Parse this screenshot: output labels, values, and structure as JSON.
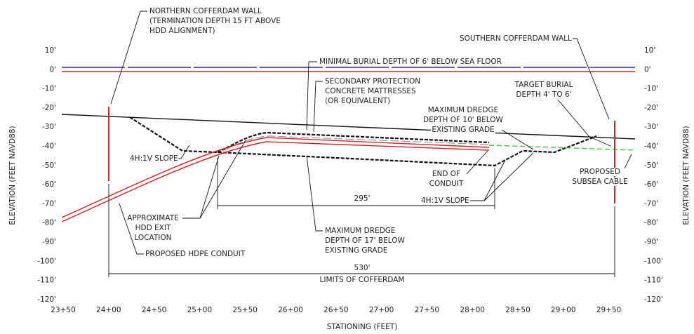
{
  "axes": {
    "x_label": "STATIONING (FEET)",
    "y_label_left": "ELEVATION (FEET NAVD88)",
    "y_label_right": "ELEVATION (FEET NAVD88)",
    "x_ticks": [
      "23+50",
      "24+00",
      "24+50",
      "25+00",
      "25+50",
      "26+00",
      "26+50",
      "27+00",
      "27+50",
      "28+00",
      "28+50",
      "29+00",
      "29+50"
    ],
    "y_ticks": [
      "10'",
      "0'",
      "-10'",
      "-20'",
      "-30'",
      "-40'",
      "-50'",
      "-60'",
      "-70'",
      "-80'",
      "-90'",
      "-100'",
      "-110'",
      "-120'"
    ]
  },
  "annotations": [
    [
      "NORTHERN COFFERDAM WALL",
      "(TERMINATION DEPTH 15 FT ABOVE",
      "HDD ALIGNMENT)"
    ],
    [
      "MINIMAL BURIAL DEPTH OF 6' BELOW SEA FLOOR"
    ],
    [
      "SECONDARY PROTECTION",
      "CONCRETE MATTRESSES",
      "(OR EQUIVALENT)"
    ],
    [
      "SOUTHERN COFFERDAM WALL"
    ],
    [
      "TARGET BURIAL",
      "DEPTH 4' TO 6'"
    ],
    [
      "MAXIMUM DREDGE",
      "DEPTH OF 10' BELOW",
      "EXISTING GRADE"
    ],
    [
      "4H:1V SLOPE"
    ],
    [
      "END OF",
      "CONDUIT"
    ],
    [
      "PROPOSED",
      "SUBSEA CABLE"
    ],
    [
      "4H:1V SLOPE"
    ],
    [
      "APPROXIMATE",
      "HDD EXIT",
      "LOCATION"
    ],
    [
      "MAXIMUM DREDGE",
      "DEPTH OF 17' BELOW",
      "EXISTING GRADE"
    ],
    [
      "PROPOSED HDPE CONDUIT"
    ],
    [
      "LIMITS OF COFFERDAM"
    ]
  ],
  "dimensions": [
    "295'",
    "530'"
  ]
}
